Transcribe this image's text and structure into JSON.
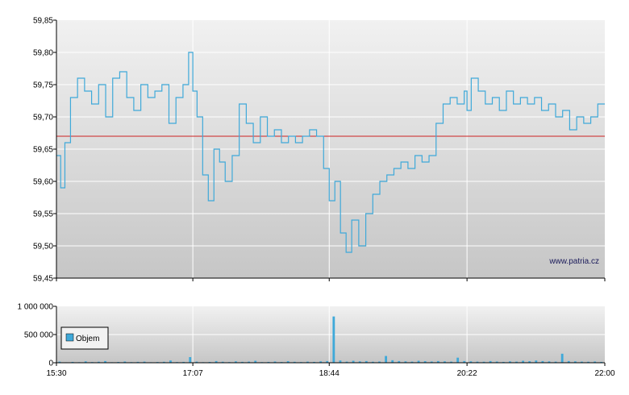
{
  "watermark": "www.patria.cz",
  "chart_data": [
    {
      "type": "line",
      "name": "price",
      "xlabel": "",
      "ylabel": "",
      "ylim": [
        59.45,
        59.85
      ],
      "yticks": [
        "59,85",
        "59,80",
        "59,75",
        "59,70",
        "59,65",
        "59,60",
        "59,55",
        "59,50",
        "59,45"
      ],
      "xlim": [
        "15:30",
        "22:00"
      ],
      "xticks": [
        "15:30",
        "17:07",
        "18:44",
        "20:22",
        "22:00"
      ],
      "grid": true,
      "reference_line": 59.67,
      "colors": {
        "line": "#3fa9d9",
        "reference": "#cc2222",
        "grid": "#ffffff"
      },
      "series": [
        {
          "x": [
            "15:30",
            "15:33",
            "15:36",
            "15:40",
            "15:45",
            "15:50",
            "15:55",
            "16:00",
            "16:05",
            "16:10",
            "16:15",
            "16:20",
            "16:25",
            "16:30",
            "16:35",
            "16:40",
            "16:45",
            "16:50",
            "16:55",
            "17:00",
            "17:04",
            "17:07",
            "17:10",
            "17:14",
            "17:18",
            "17:22",
            "17:26",
            "17:30",
            "17:35",
            "17:40",
            "17:45",
            "17:50",
            "17:55",
            "18:00",
            "18:05",
            "18:10",
            "18:15",
            "18:20",
            "18:25",
            "18:30",
            "18:35",
            "18:40",
            "18:44",
            "18:48",
            "18:52",
            "18:56",
            "19:00",
            "19:05",
            "19:10",
            "19:15",
            "19:20",
            "19:25",
            "19:30",
            "19:35",
            "19:40",
            "19:45",
            "19:50",
            "19:55",
            "20:00",
            "20:05",
            "20:10",
            "20:15",
            "20:20",
            "20:22",
            "20:25",
            "20:30",
            "20:35",
            "20:40",
            "20:45",
            "20:50",
            "20:55",
            "21:00",
            "21:05",
            "21:10",
            "21:15",
            "21:20",
            "21:25",
            "21:30",
            "21:35",
            "21:40",
            "21:45",
            "21:50",
            "21:55",
            "22:00"
          ],
          "values": [
            59.64,
            59.59,
            59.66,
            59.73,
            59.76,
            59.74,
            59.72,
            59.75,
            59.7,
            59.76,
            59.77,
            59.73,
            59.71,
            59.75,
            59.73,
            59.74,
            59.75,
            59.69,
            59.73,
            59.75,
            59.8,
            59.74,
            59.7,
            59.61,
            59.57,
            59.65,
            59.63,
            59.6,
            59.64,
            59.72,
            59.69,
            59.66,
            59.7,
            59.67,
            59.68,
            59.66,
            59.67,
            59.66,
            59.67,
            59.68,
            59.67,
            59.62,
            59.57,
            59.6,
            59.52,
            59.49,
            59.54,
            59.5,
            59.55,
            59.58,
            59.6,
            59.61,
            59.62,
            59.63,
            59.62,
            59.64,
            59.63,
            59.64,
            59.69,
            59.72,
            59.73,
            59.72,
            59.74,
            59.71,
            59.76,
            59.74,
            59.72,
            59.73,
            59.71,
            59.74,
            59.72,
            59.73,
            59.72,
            59.73,
            59.71,
            59.72,
            59.7,
            59.71,
            59.68,
            59.7,
            59.69,
            59.7,
            59.72,
            59.72
          ]
        }
      ]
    },
    {
      "type": "bar",
      "name": "volume",
      "ylim": [
        0,
        1000000
      ],
      "yticks": [
        "1 000 000",
        "500 000",
        "0"
      ],
      "xticks": [
        "15:30",
        "17:07",
        "18:44",
        "20:22",
        "22:00"
      ],
      "legend": {
        "label": "Objem",
        "placement": "left"
      },
      "colors": {
        "bar": "#3fa9d9"
      },
      "series": [
        {
          "name": "Objem",
          "values": [
            20000,
            8000,
            15000,
            10000,
            25000,
            12000,
            18000,
            30000,
            9000,
            14000,
            22000,
            11000,
            16000,
            20000,
            9000,
            13000,
            17000,
            40000,
            12000,
            15000,
            100000,
            20000,
            10000,
            14000,
            30000,
            18000,
            12000,
            25000,
            16000,
            20000,
            35000,
            11000,
            15000,
            22000,
            13000,
            28000,
            17000,
            12000,
            20000,
            15000,
            25000,
            30000,
            820000,
            40000,
            20000,
            35000,
            25000,
            30000,
            18000,
            22000,
            120000,
            45000,
            30000,
            25000,
            20000,
            35000,
            28000,
            22000,
            30000,
            25000,
            20000,
            90000,
            30000,
            25000,
            20000,
            18000,
            30000,
            22000,
            15000,
            25000,
            20000,
            35000,
            28000,
            40000,
            30000,
            25000,
            20000,
            160000,
            30000,
            25000,
            20000,
            18000,
            22000,
            15000
          ]
        }
      ]
    }
  ]
}
